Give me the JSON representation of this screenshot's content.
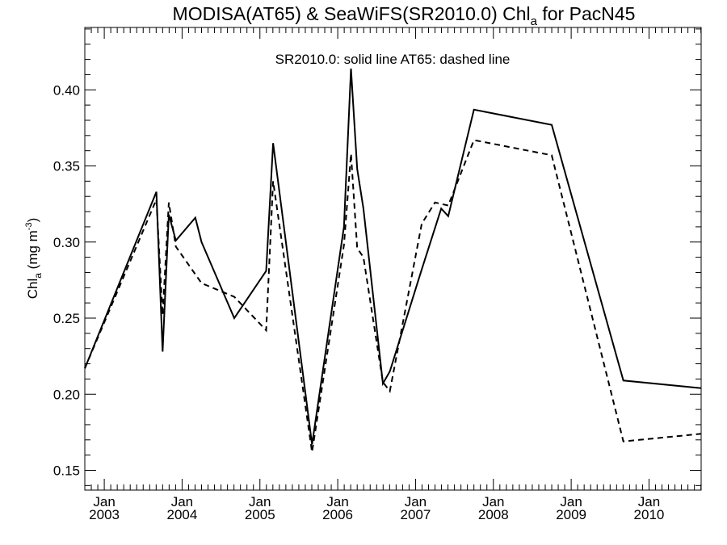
{
  "chart_data": {
    "type": "line",
    "title": "MODISA(AT65) & SeaWiFS(SR2010.0)  Chl",
    "title_subscript": "a",
    "title_suffix": " for PacN45",
    "legend_text": "SR2010.0: solid line   AT65: dashed line",
    "ylabel": "Chl",
    "ylabel_subscript": "a",
    "ylabel_units": " (mg m",
    "ylabel_units_sup": "-3",
    "ylabel_units_close": ")",
    "ylim": [
      0.137,
      0.441
    ],
    "xlim": [
      2002.75,
      2010.67
    ],
    "y_ticks": [
      "0.15",
      "0.20",
      "0.25",
      "0.30",
      "0.35",
      "0.40"
    ],
    "y_tick_values": [
      0.15,
      0.2,
      0.25,
      0.3,
      0.35,
      0.4
    ],
    "x_tick_years": [
      2003,
      2004,
      2005,
      2006,
      2007,
      2008,
      2009,
      2010
    ],
    "x_tick_month": "Jan",
    "x_tick_labels": [
      "2003",
      "2004",
      "2005",
      "2006",
      "2007",
      "2008",
      "2009",
      "2010"
    ],
    "grid": false,
    "series": [
      {
        "label": "SR2010.0",
        "line_style": "solid",
        "color": "#000000",
        "x": [
          2002.75,
          2003.67,
          2003.75,
          2003.83,
          2003.92,
          2004.17,
          2004.25,
          2004.67,
          2005.08,
          2005.17,
          2005.67,
          2006.08,
          2006.17,
          2006.25,
          2006.33,
          2006.58,
          2006.67,
          2007.08,
          2007.33,
          2007.42,
          2007.75,
          2008.75,
          2009.67,
          2010.67
        ],
        "y": [
          0.217,
          0.333,
          0.228,
          0.318,
          0.301,
          0.316,
          0.3,
          0.25,
          0.281,
          0.365,
          0.167,
          0.31,
          0.414,
          0.348,
          0.322,
          0.207,
          0.215,
          0.282,
          0.322,
          0.317,
          0.387,
          0.377,
          0.209,
          0.204
        ]
      },
      {
        "label": "AT65",
        "line_style": "dashed",
        "color": "#000000",
        "x": [
          2002.75,
          2003.67,
          2003.75,
          2003.83,
          2003.92,
          2004.25,
          2004.67,
          2005.08,
          2005.17,
          2005.67,
          2006.08,
          2006.17,
          2006.25,
          2006.33,
          2006.58,
          2006.67,
          2007.08,
          2007.25,
          2007.42,
          2007.75,
          2008.75,
          2009.67,
          2010.67
        ],
        "y": [
          0.217,
          0.328,
          0.252,
          0.326,
          0.297,
          0.273,
          0.264,
          0.242,
          0.34,
          0.162,
          0.298,
          0.358,
          0.296,
          0.29,
          0.208,
          0.202,
          0.312,
          0.326,
          0.324,
          0.367,
          0.357,
          0.169,
          0.174
        ]
      }
    ]
  }
}
